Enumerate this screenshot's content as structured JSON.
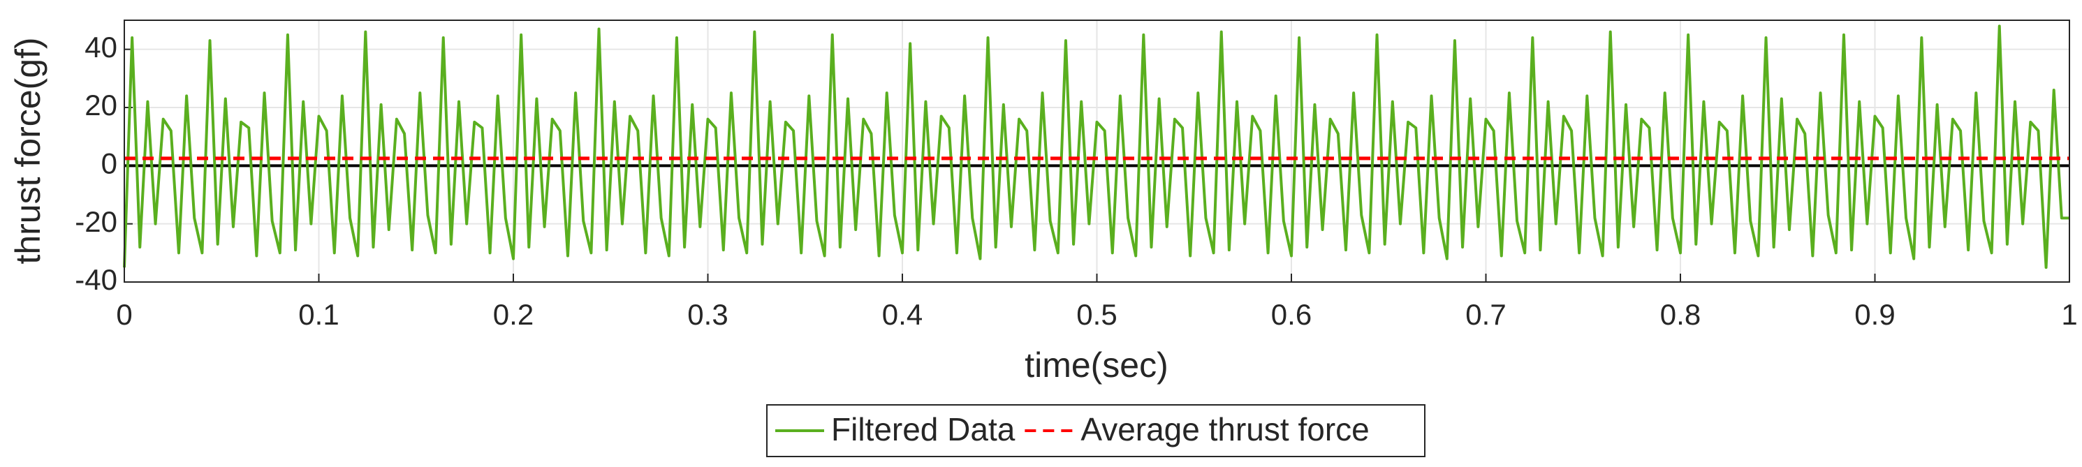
{
  "chart_data": {
    "type": "line",
    "x_label": "time(sec)",
    "y_label": "thrust force(gf)",
    "xlim": [
      0,
      1
    ],
    "xticks": [
      0,
      0.1,
      0.2,
      0.3,
      0.4,
      0.5,
      0.6,
      0.7,
      0.8,
      0.9,
      1
    ],
    "ylim": [
      -40,
      50
    ],
    "yticks": [
      -40,
      -20,
      0,
      20,
      40
    ],
    "grid": true,
    "zero_line": 0,
    "legend": "bottom",
    "series": [
      {
        "name": "Filtered Data",
        "color": "#5aaf1f",
        "style": "solid",
        "x": [
          0,
          0.004,
          0.008,
          0.012,
          0.016,
          0.02,
          0.024,
          0.028,
          0.032,
          0.036,
          0.04,
          0.044,
          0.048,
          0.052,
          0.056,
          0.06,
          0.064,
          0.068,
          0.072,
          0.076,
          0.08,
          0.084,
          0.088,
          0.092,
          0.096,
          0.1,
          0.104,
          0.108,
          0.112,
          0.116,
          0.12,
          0.124,
          0.128,
          0.132,
          0.136,
          0.14,
          0.144,
          0.148,
          0.152,
          0.156,
          0.16,
          0.164,
          0.168,
          0.172,
          0.176,
          0.18,
          0.184,
          0.188,
          0.192,
          0.196,
          0.2,
          0.204,
          0.208,
          0.212,
          0.216,
          0.22,
          0.224,
          0.228,
          0.232,
          0.236,
          0.24,
          0.244,
          0.248,
          0.252,
          0.256,
          0.26,
          0.264,
          0.268,
          0.272,
          0.276,
          0.28,
          0.284,
          0.288,
          0.292,
          0.296,
          0.3,
          0.304,
          0.308,
          0.312,
          0.316,
          0.32,
          0.324,
          0.328,
          0.332,
          0.336,
          0.34,
          0.344,
          0.348,
          0.352,
          0.356,
          0.36,
          0.364,
          0.368,
          0.372,
          0.376,
          0.38,
          0.384,
          0.388,
          0.392,
          0.396,
          0.4,
          0.404,
          0.408,
          0.412,
          0.416,
          0.42,
          0.424,
          0.428,
          0.432,
          0.436,
          0.44,
          0.444,
          0.448,
          0.452,
          0.456,
          0.46,
          0.464,
          0.468,
          0.472,
          0.476,
          0.48,
          0.484,
          0.488,
          0.492,
          0.496,
          0.5,
          0.504,
          0.508,
          0.512,
          0.516,
          0.52,
          0.524,
          0.528,
          0.532,
          0.536,
          0.54,
          0.544,
          0.548,
          0.552,
          0.556,
          0.56,
          0.564,
          0.568,
          0.572,
          0.576,
          0.58,
          0.584,
          0.588,
          0.592,
          0.596,
          0.6,
          0.604,
          0.608,
          0.612,
          0.616,
          0.62,
          0.624,
          0.628,
          0.632,
          0.636,
          0.64,
          0.644,
          0.648,
          0.652,
          0.656,
          0.66,
          0.664,
          0.668,
          0.672,
          0.676,
          0.68,
          0.684,
          0.688,
          0.692,
          0.696,
          0.7,
          0.704,
          0.708,
          0.712,
          0.716,
          0.72,
          0.724,
          0.728,
          0.732,
          0.736,
          0.74,
          0.744,
          0.748,
          0.752,
          0.756,
          0.76,
          0.764,
          0.768,
          0.772,
          0.776,
          0.78,
          0.784,
          0.788,
          0.792,
          0.796,
          0.8,
          0.804,
          0.808,
          0.812,
          0.816,
          0.82,
          0.824,
          0.828,
          0.832,
          0.836,
          0.84,
          0.844,
          0.848,
          0.852,
          0.856,
          0.86,
          0.864,
          0.868,
          0.872,
          0.876,
          0.88,
          0.884,
          0.888,
          0.892,
          0.896,
          0.9,
          0.904,
          0.908,
          0.912,
          0.916,
          0.92,
          0.924,
          0.928,
          0.932,
          0.936,
          0.94,
          0.944,
          0.948,
          0.952,
          0.956,
          0.96,
          0.964,
          0.968,
          0.972,
          0.976,
          0.98,
          0.984,
          0.988,
          0.992,
          0.996,
          1
        ],
        "values": [
          -35,
          44,
          -28,
          22,
          -20,
          16,
          12,
          -30,
          24,
          -18,
          -30,
          43,
          -27,
          23,
          -21,
          15,
          13,
          -31,
          25,
          -19,
          -30,
          45,
          -29,
          22,
          -20,
          17,
          12,
          -30,
          24,
          -18,
          -31,
          46,
          -28,
          21,
          -22,
          16,
          11,
          -29,
          25,
          -17,
          -30,
          44,
          -27,
          22,
          -20,
          15,
          13,
          -30,
          24,
          -18,
          -32,
          45,
          -28,
          23,
          -21,
          16,
          12,
          -31,
          25,
          -19,
          -30,
          47,
          -29,
          22,
          -20,
          17,
          12,
          -30,
          24,
          -18,
          -31,
          44,
          -28,
          21,
          -21,
          16,
          13,
          -29,
          25,
          -18,
          -30,
          46,
          -27,
          22,
          -20,
          15,
          12,
          -30,
          24,
          -19,
          -31,
          45,
          -28,
          23,
          -22,
          16,
          11,
          -31,
          25,
          -17,
          -30,
          42,
          -29,
          22,
          -20,
          17,
          13,
          -30,
          24,
          -18,
          -32,
          44,
          -28,
          21,
          -21,
          16,
          12,
          -29,
          25,
          -19,
          -30,
          43,
          -27,
          22,
          -20,
          15,
          12,
          -30,
          24,
          -18,
          -31,
          45,
          -28,
          23,
          -21,
          16,
          13,
          -31,
          25,
          -18,
          -30,
          46,
          -29,
          22,
          -20,
          17,
          12,
          -30,
          24,
          -19,
          -31,
          44,
          -28,
          21,
          -22,
          16,
          11,
          -29,
          25,
          -17,
          -30,
          45,
          -27,
          22,
          -20,
          15,
          13,
          -30,
          24,
          -18,
          -32,
          43,
          -28,
          23,
          -21,
          16,
          12,
          -31,
          25,
          -19,
          -30,
          44,
          -29,
          22,
          -20,
          17,
          12,
          -30,
          24,
          -18,
          -31,
          46,
          -28,
          21,
          -21,
          16,
          13,
          -29,
          25,
          -18,
          -30,
          45,
          -27,
          22,
          -20,
          15,
          12,
          -30,
          24,
          -19,
          -31,
          44,
          -28,
          23,
          -22,
          16,
          11,
          -31,
          25,
          -17,
          -30,
          45,
          -29,
          22,
          -20,
          17,
          13,
          -30,
          24,
          -18,
          -32,
          44,
          -28,
          21,
          -21,
          16,
          12,
          -29,
          25,
          -19,
          -30,
          48,
          -27,
          22,
          -20,
          15,
          12,
          -35,
          26,
          -18,
          -18
        ]
      },
      {
        "name": "Average thrust force",
        "color": "#ff0000",
        "style": "dashed",
        "x": [
          0,
          1
        ],
        "values": [
          2.5,
          2.5
        ]
      }
    ]
  }
}
